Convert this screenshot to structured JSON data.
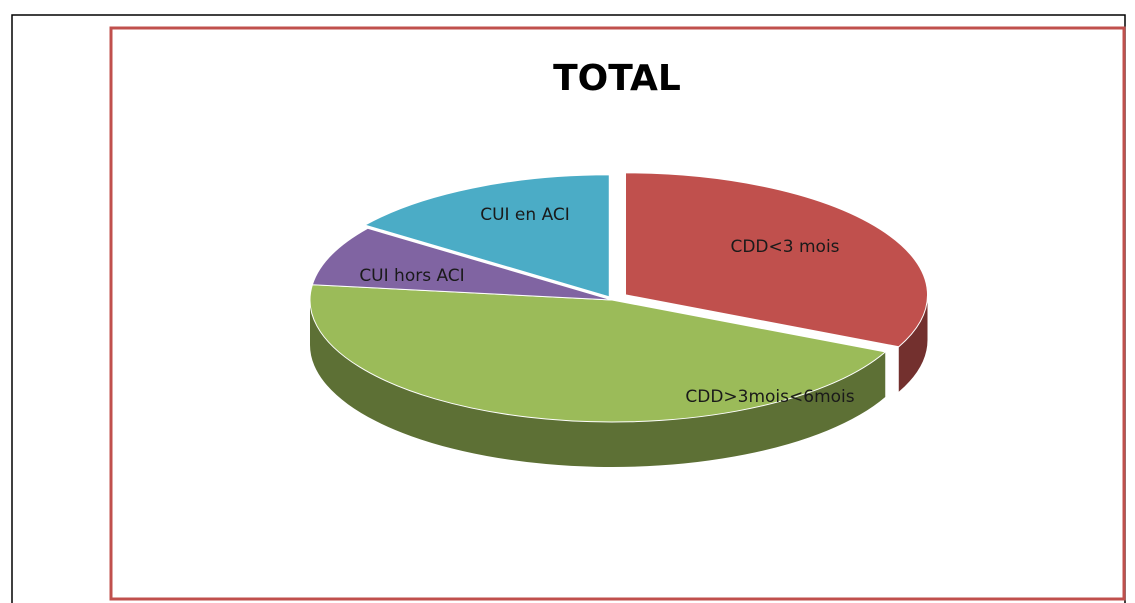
{
  "chart_data": {
    "type": "pie",
    "title": "TOTAL",
    "categories": [
      "CDD<3 mois",
      "CDD>3mois<6mois",
      "CUI hors ACI",
      "CUI  en ACI"
    ],
    "values": [
      32,
      45,
      8,
      15
    ],
    "colors": [
      "#c0504d",
      "#9bbb59",
      "#8064a2",
      "#4bacc6"
    ]
  }
}
